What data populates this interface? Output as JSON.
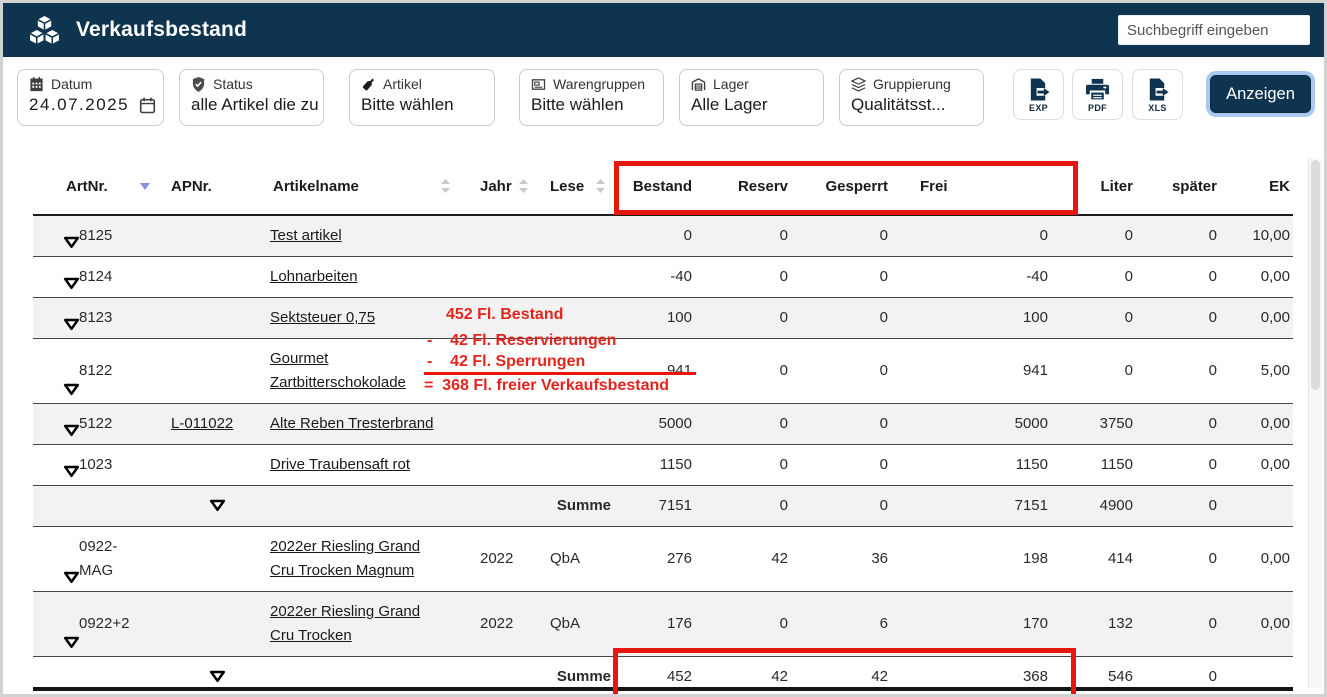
{
  "app": {
    "title": "Verkaufsbestand",
    "search_placeholder": "Suchbegriff eingeben"
  },
  "filters": [
    {
      "icon": "calendar-icon",
      "label": "Datum",
      "value": "24.07.2025"
    },
    {
      "icon": "shield-check-icon",
      "label": "Status",
      "value": "alle Artikel die zu"
    },
    {
      "icon": "wine-bottle-icon",
      "label": "Artikel",
      "value": "Bitte wählen"
    },
    {
      "icon": "frame-icon",
      "label": "Warengruppen",
      "value": "Bitte wählen"
    },
    {
      "icon": "warehouse-icon",
      "label": "Lager",
      "value": "Alle Lager"
    },
    {
      "icon": "layers-icon",
      "label": "Gruppierung",
      "value": "Qualitätsst..."
    }
  ],
  "toolbar": {
    "export_buttons": [
      {
        "label": "EXP"
      },
      {
        "label": "PDF"
      },
      {
        "label": "XLS"
      }
    ],
    "show_label": "Anzeigen"
  },
  "table": {
    "columns": [
      "ArtNr.",
      "APNr.",
      "Artikelname",
      "Jahr",
      "Lese",
      "Bestand",
      "Reserv",
      "Gesperrt",
      "Frei",
      "Liter",
      "später",
      "EK"
    ],
    "rows": [
      {
        "type": "item",
        "artnr": "8125",
        "apnr": "",
        "name": "Test artikel",
        "jahr": "",
        "lese": "",
        "bestand": "0",
        "reserv": "0",
        "gesperrt": "0",
        "frei": "0",
        "liter": "0",
        "spaeter": "0",
        "ek": "10,00"
      },
      {
        "type": "item",
        "artnr": "8124",
        "apnr": "",
        "name": "Lohnarbeiten",
        "jahr": "",
        "lese": "",
        "bestand": "-40",
        "reserv": "0",
        "gesperrt": "0",
        "frei": "-40",
        "liter": "0",
        "spaeter": "0",
        "ek": "0,00"
      },
      {
        "type": "item",
        "artnr": "8123",
        "apnr": "",
        "name": "Sektsteuer 0,75",
        "jahr": "",
        "lese": "",
        "bestand": "100",
        "reserv": "0",
        "gesperrt": "0",
        "frei": "100",
        "liter": "0",
        "spaeter": "0",
        "ek": "0,00"
      },
      {
        "type": "item",
        "artnr": "8122",
        "apnr": "",
        "name": "Gourmet Zartbitterschokolade",
        "jahr": "",
        "lese": "",
        "bestand": "941",
        "reserv": "0",
        "gesperrt": "0",
        "frei": "941",
        "liter": "0",
        "spaeter": "0",
        "ek": "5,00"
      },
      {
        "type": "item",
        "artnr": "5122",
        "apnr": "L-011022",
        "name": "Alte Reben Tresterbrand",
        "jahr": "",
        "lese": "",
        "bestand": "5000",
        "reserv": "0",
        "gesperrt": "0",
        "frei": "5000",
        "liter": "3750",
        "spaeter": "0",
        "ek": "0,00"
      },
      {
        "type": "item",
        "artnr": "1023",
        "apnr": "",
        "name": "Drive Traubensaft rot",
        "jahr": "",
        "lese": "",
        "bestand": "1150",
        "reserv": "0",
        "gesperrt": "0",
        "frei": "1150",
        "liter": "1150",
        "spaeter": "0",
        "ek": "0,00"
      },
      {
        "type": "sum",
        "artnr": "",
        "apnr": "",
        "name": "",
        "jahr": "",
        "lese": "Summe",
        "bestand": "7151",
        "reserv": "0",
        "gesperrt": "0",
        "frei": "7151",
        "liter": "4900",
        "spaeter": "0",
        "ek": ""
      },
      {
        "type": "item",
        "artnr": "0922-MAG",
        "apnr": "",
        "name": "2022er Riesling Grand Cru Trocken Magnum",
        "jahr": "2022",
        "lese": "QbA",
        "bestand": "276",
        "reserv": "42",
        "gesperrt": "36",
        "frei": "198",
        "liter": "414",
        "spaeter": "0",
        "ek": "0,00"
      },
      {
        "type": "item",
        "artnr": "0922+2",
        "apnr": "",
        "name": "2022er Riesling Grand Cru Trocken",
        "jahr": "2022",
        "lese": "QbA",
        "bestand": "176",
        "reserv": "0",
        "gesperrt": "6",
        "frei": "170",
        "liter": "132",
        "spaeter": "0",
        "ek": "0,00"
      },
      {
        "type": "sum",
        "artnr": "",
        "apnr": "",
        "name": "",
        "jahr": "",
        "lese": "Summe",
        "bestand": "452",
        "reserv": "42",
        "gesperrt": "42",
        "frei": "368",
        "liter": "546",
        "spaeter": "0",
        "ek": ""
      }
    ]
  },
  "annotation": {
    "line1": "452 Fl. Bestand",
    "line2": "-    42 Fl. Reservierungen",
    "line3": "-    42 Fl. Sperrungen",
    "line4": "=  368 Fl. freier Verkaufsbestand",
    "highlight_boxes": [
      "header-columns-bestand-to-frei",
      "footer-summe-values"
    ]
  },
  "colors": {
    "navy": "#0f3450",
    "annotation_red": "#e8170d",
    "annotation_text_red": "#e3251d",
    "row_alt": "#f2f2f2"
  }
}
